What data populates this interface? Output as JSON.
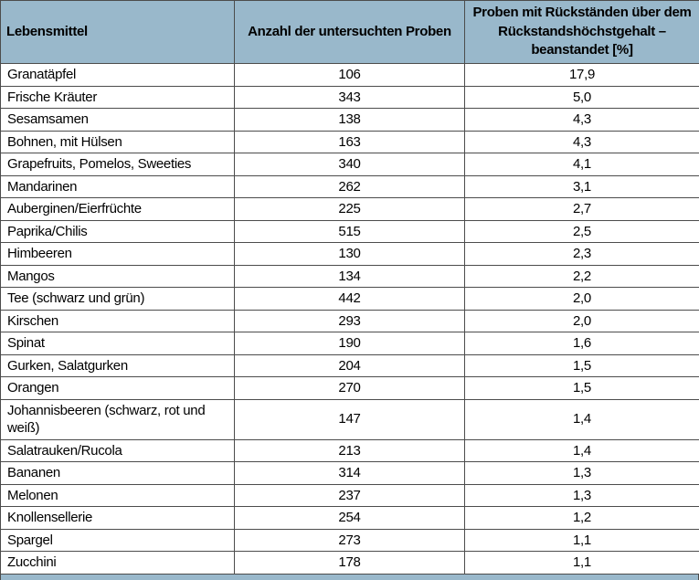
{
  "colors": {
    "header_bg": "#99b8cb",
    "border": "#4c4c4c",
    "text": "#000000",
    "row_bg": "#ffffff"
  },
  "table": {
    "columns": [
      {
        "label": "Lebensmittel"
      },
      {
        "label": "Anzahl der untersuchten Proben"
      },
      {
        "label": "Proben mit Rückständen über dem Rückstandshöchstgehalt – beanstandet [%]"
      }
    ],
    "rows": [
      {
        "food": "Granatäpfel",
        "samples": "106",
        "exceed_pct": "17,9"
      },
      {
        "food": "Frische Kräuter",
        "samples": "343",
        "exceed_pct": "5,0"
      },
      {
        "food": "Sesamsamen",
        "samples": "138",
        "exceed_pct": "4,3"
      },
      {
        "food": "Bohnen, mit Hülsen",
        "samples": "163",
        "exceed_pct": "4,3"
      },
      {
        "food": "Grapefruits, Pomelos, Sweeties",
        "samples": "340",
        "exceed_pct": "4,1"
      },
      {
        "food": "Mandarinen",
        "samples": "262",
        "exceed_pct": "3,1"
      },
      {
        "food": "Auberginen/Eierfrüchte",
        "samples": "225",
        "exceed_pct": "2,7"
      },
      {
        "food": "Paprika/Chilis",
        "samples": "515",
        "exceed_pct": "2,5"
      },
      {
        "food": "Himbeeren",
        "samples": "130",
        "exceed_pct": "2,3"
      },
      {
        "food": "Mangos",
        "samples": "134",
        "exceed_pct": "2,2"
      },
      {
        "food": "Tee (schwarz und grün)",
        "samples": "442",
        "exceed_pct": "2,0"
      },
      {
        "food": "Kirschen",
        "samples": "293",
        "exceed_pct": "2,0"
      },
      {
        "food": "Spinat",
        "samples": "190",
        "exceed_pct": "1,6"
      },
      {
        "food": "Gurken, Salatgurken",
        "samples": "204",
        "exceed_pct": "1,5"
      },
      {
        "food": "Orangen",
        "samples": "270",
        "exceed_pct": "1,5"
      },
      {
        "food": "Johannisbeeren (schwarz, rot und weiß)",
        "samples": "147",
        "exceed_pct": "1,4"
      },
      {
        "food": "Salatrauken/Rucola",
        "samples": "213",
        "exceed_pct": "1,4"
      },
      {
        "food": "Bananen",
        "samples": "314",
        "exceed_pct": "1,3"
      },
      {
        "food": "Melonen",
        "samples": "237",
        "exceed_pct": "1,3"
      },
      {
        "food": "Knollensellerie",
        "samples": "254",
        "exceed_pct": "1,2"
      },
      {
        "food": "Spargel",
        "samples": "273",
        "exceed_pct": "1,1"
      },
      {
        "food": "Zucchini",
        "samples": "178",
        "exceed_pct": "1,1"
      }
    ]
  }
}
